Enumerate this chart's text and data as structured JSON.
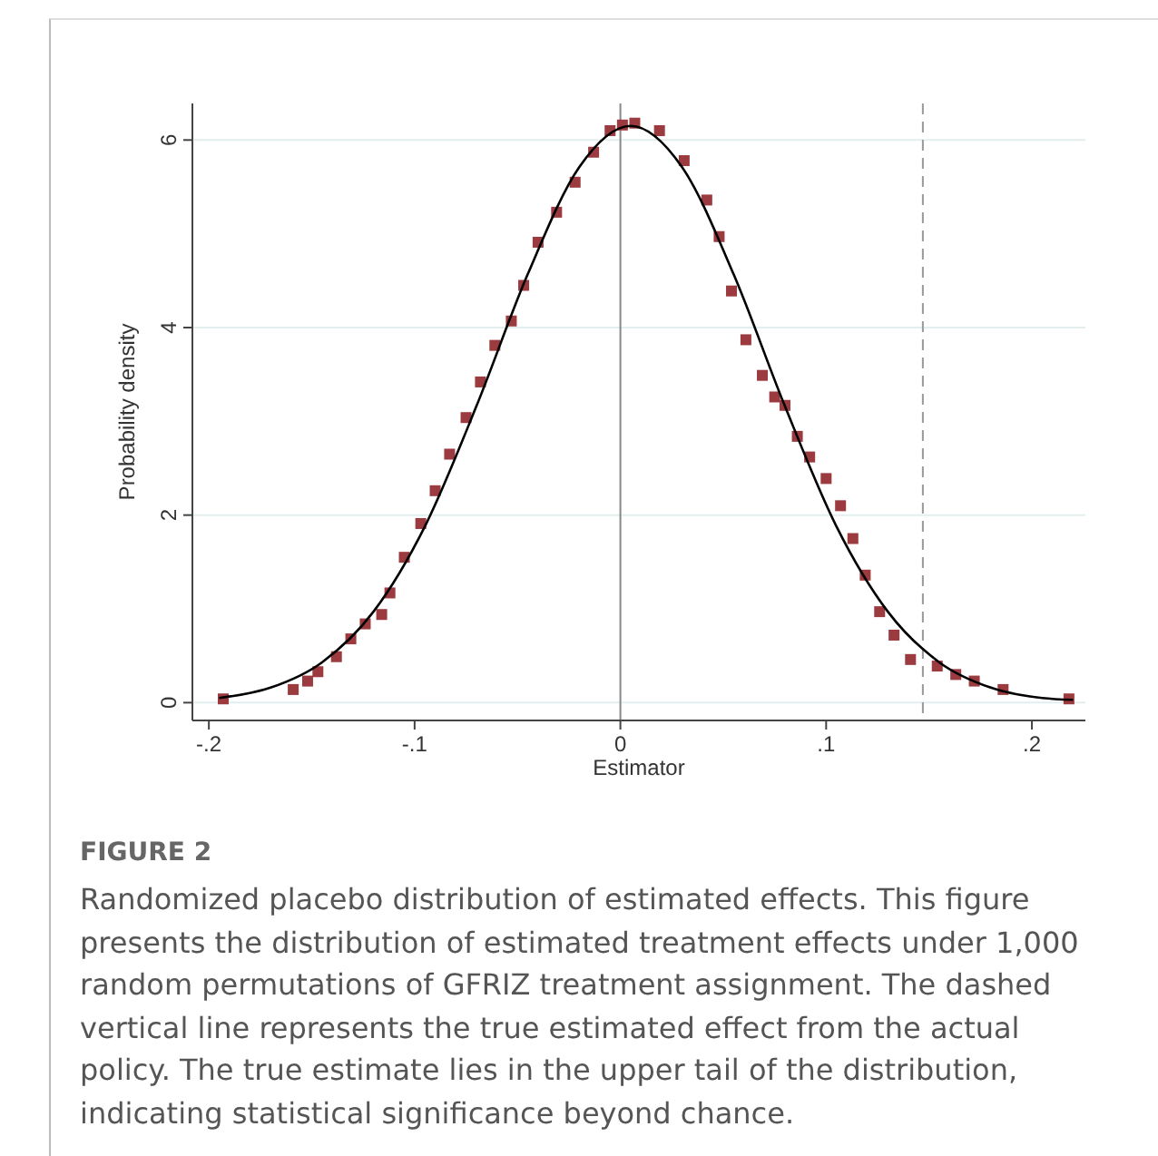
{
  "chart_data": {
    "type": "scatter",
    "xlabel": "Estimator",
    "ylabel": "Probability density",
    "xlim": [
      -0.208,
      0.226
    ],
    "ylim": [
      -0.19,
      6.39
    ],
    "xticks": [
      {
        "value": -0.2,
        "label": "-.2"
      },
      {
        "value": -0.1,
        "label": "-.1"
      },
      0,
      {
        "value": 0.1,
        "label": ".1"
      },
      {
        "value": 0.2,
        "label": ".2"
      }
    ],
    "yticks": [
      0,
      2,
      4,
      6
    ],
    "grid": "y",
    "series": [
      {
        "marker": "square",
        "color": "#9b3a3f",
        "x": [
          -0.193,
          -0.159,
          -0.152,
          -0.147,
          -0.138,
          -0.131,
          -0.124,
          -0.116,
          -0.112,
          -0.105,
          -0.097,
          -0.09,
          -0.083,
          -0.075,
          -0.068,
          -0.061,
          -0.053,
          -0.047,
          -0.04,
          -0.031,
          -0.022,
          -0.013,
          -0.005,
          0.001,
          0.007,
          0.019,
          0.031,
          0.042,
          0.048,
          0.054,
          0.061,
          0.069,
          0.075,
          0.08,
          0.086,
          0.092,
          0.1,
          0.107,
          0.113,
          0.119,
          0.126,
          0.133,
          0.141,
          0.154,
          0.163,
          0.172,
          0.186,
          0.218
        ],
        "values": [
          0.04,
          0.14,
          0.23,
          0.33,
          0.49,
          0.68,
          0.84,
          0.94,
          1.17,
          1.55,
          1.91,
          2.26,
          2.65,
          3.04,
          3.42,
          3.81,
          4.07,
          4.45,
          4.91,
          5.23,
          5.55,
          5.87,
          6.1,
          6.16,
          6.18,
          6.1,
          5.78,
          5.36,
          4.97,
          4.39,
          3.87,
          3.49,
          3.26,
          3.17,
          2.84,
          2.62,
          2.39,
          2.1,
          1.75,
          1.36,
          0.97,
          0.72,
          0.46,
          0.39,
          0.3,
          0.23,
          0.14,
          0.04
        ]
      },
      {
        "type": "line",
        "color": "#000000",
        "line_style": "solid",
        "marker": "none",
        "x": [
          -0.195,
          -0.17,
          -0.145,
          -0.12,
          -0.095,
          -0.07,
          -0.045,
          -0.02,
          0.005,
          0.03,
          0.055,
          0.08,
          0.105,
          0.13,
          0.155,
          0.18,
          0.205,
          0.22
        ],
        "values": [
          0.05,
          0.16,
          0.43,
          0.97,
          1.88,
          3.16,
          4.57,
          5.71,
          6.15,
          5.71,
          4.57,
          3.16,
          1.88,
          0.97,
          0.43,
          0.16,
          0.05,
          0.03
        ]
      }
    ],
    "ref_lines": [
      {
        "axis": "x",
        "value": 0,
        "color": "#888888",
        "line_style": "solid"
      },
      {
        "axis": "x",
        "value": 0.147,
        "color": "#999999",
        "line_style": "dashed"
      }
    ],
    "annotations": [
      "FIGURE 2",
      "Randomized placebo distribution of estimated effects. This figure presents the distribution of estimated treatment effects under 1,000 random permutations of GFRIZ treatment assignment. The dashed vertical line represents the true estimated effect from the actual policy. The true estimate lies in the upper tail of the distribution, indicating statistical significance beyond chance."
    ]
  }
}
